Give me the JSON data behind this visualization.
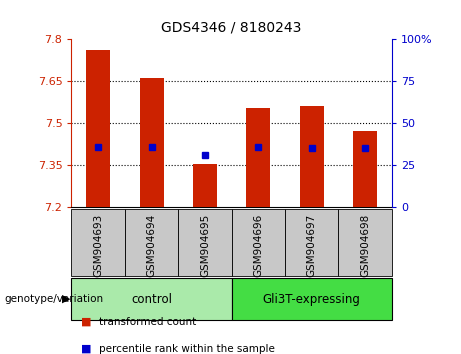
{
  "title": "GDS4346 / 8180243",
  "samples": [
    "GSM904693",
    "GSM904694",
    "GSM904695",
    "GSM904696",
    "GSM904697",
    "GSM904698"
  ],
  "bar_values": [
    7.76,
    7.66,
    7.355,
    7.555,
    7.56,
    7.47
  ],
  "percentile_values": [
    7.415,
    7.415,
    7.385,
    7.415,
    7.41,
    7.41
  ],
  "y_min": 7.2,
  "y_max": 7.8,
  "y_ticks_left": [
    7.2,
    7.35,
    7.5,
    7.65,
    7.8
  ],
  "y_ticks_right_labels": [
    "0",
    "25",
    "50",
    "75",
    "100%"
  ],
  "y_ticks_right_values": [
    7.2,
    7.35,
    7.5,
    7.65,
    7.8
  ],
  "groups": [
    {
      "label": "control",
      "samples": [
        0,
        1,
        2
      ],
      "color": "#AAEAAA"
    },
    {
      "label": "Gli3T-expressing",
      "samples": [
        3,
        4,
        5
      ],
      "color": "#44DD44"
    }
  ],
  "bar_color": "#CC2200",
  "percentile_color": "#0000CC",
  "bar_width": 0.45,
  "bg_plot_color": "#FFFFFF",
  "bg_label_color": "#C8C8C8",
  "left_tick_color": "#CC2200",
  "right_tick_color": "#0000CC",
  "legend_items": [
    {
      "label": "transformed count",
      "color": "#CC2200"
    },
    {
      "label": "percentile rank within the sample",
      "color": "#0000CC"
    }
  ],
  "genotype_label": "genotype/variation"
}
